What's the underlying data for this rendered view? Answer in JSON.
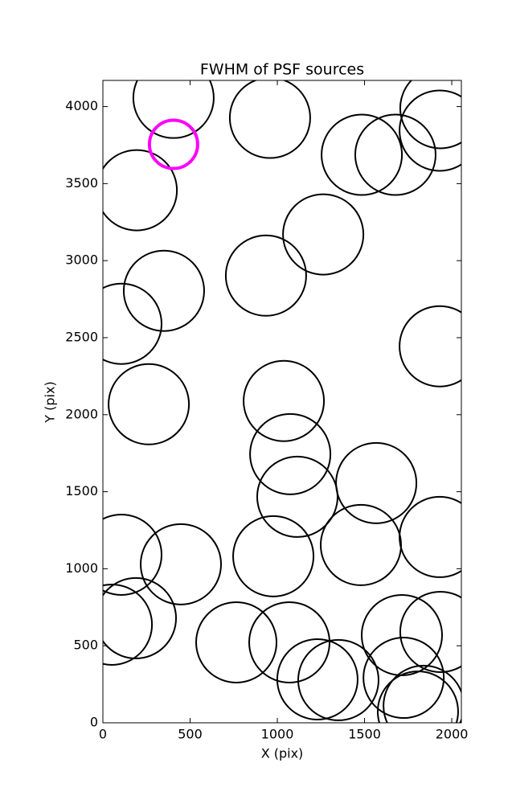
{
  "chart_data": {
    "type": "scatter",
    "title": "FWHM of PSF sources",
    "x_label": "X (pix)",
    "y_label": "Y (pix)",
    "xlim": [
      0,
      2055
    ],
    "ylim": [
      0,
      4170
    ],
    "xticks": [
      0,
      500,
      1000,
      1500,
      2000
    ],
    "yticks": [
      0,
      500,
      1000,
      1500,
      2000,
      2500,
      3000,
      3500,
      4000
    ],
    "series": [
      {
        "color": "#000000",
        "marker": "open-circle",
        "marker_size": 50,
        "line_width": 2,
        "x": [
          405,
          958,
          1935,
          1931,
          1484,
          1677,
          194,
          1263,
          350,
          935,
          106,
          1931,
          263,
          1037,
          1074,
          1567,
          1115,
          106,
          447,
          977,
          1479,
          1931,
          189,
          51,
          765,
          1069,
          1714,
          1935,
          1230,
          1350,
          1724,
          1839,
          1806
        ],
        "values": [
          4057,
          3927,
          3990,
          3844,
          3687,
          3687,
          3457,
          3170,
          2804,
          2903,
          2590,
          2444,
          2068,
          2089,
          1744,
          1556,
          1467,
          1091,
          1029,
          1081,
          1154,
          1206,
          679,
          637,
          522,
          522,
          569,
          590,
          282,
          277,
          292,
          110,
          73
        ]
      },
      {
        "color": "#ff00ff",
        "marker": "open-circle",
        "marker_size": 30,
        "line_width": 4,
        "x": [
          405
        ],
        "values": [
          3755
        ]
      }
    ]
  }
}
